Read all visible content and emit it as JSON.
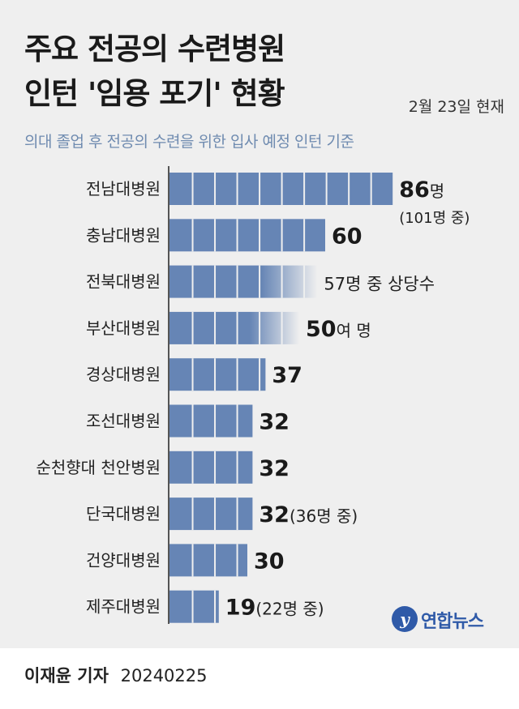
{
  "header": {
    "title_line1": "주요 전공의 수련병원",
    "title_line2": "인턴 '임용 포기' 현황",
    "date": "2월 23일 현재",
    "subtitle": "의대 졸업 후 전공의 수련을 위한 입사 예정 인턴 기준"
  },
  "chart_data": {
    "type": "bar",
    "orientation": "horizontal",
    "categories": [
      "전남대병원",
      "충남대병원",
      "전북대병원",
      "부산대병원",
      "경상대병원",
      "조선대병원",
      "순천향대 천안병원",
      "단국대병원",
      "건양대병원",
      "제주대병원"
    ],
    "values": [
      86,
      60,
      57,
      50,
      37,
      32,
      32,
      32,
      30,
      19
    ],
    "value_labels": [
      {
        "main": "86",
        "suffix": "명",
        "note": "(101명 중)"
      },
      {
        "main": "60",
        "suffix": "",
        "note": ""
      },
      {
        "main": "",
        "suffix": "57명 중 상당수",
        "note": ""
      },
      {
        "main": "50",
        "suffix": "여 명",
        "note": ""
      },
      {
        "main": "37",
        "suffix": "",
        "note": ""
      },
      {
        "main": "32",
        "suffix": "",
        "note": ""
      },
      {
        "main": "32",
        "suffix": "",
        "note": ""
      },
      {
        "main": "32",
        "suffix": "(36명 중)",
        "note": ""
      },
      {
        "main": "30",
        "suffix": "",
        "note": ""
      },
      {
        "main": "19",
        "suffix": "(22명 중)",
        "note": ""
      }
    ],
    "faded": [
      false,
      false,
      true,
      true,
      false,
      false,
      false,
      false,
      false,
      false
    ],
    "bar_color": "#6685b5",
    "axis_color": "#555555"
  },
  "logo": {
    "mark": "y",
    "text": "연합뉴스",
    "color": "#2f5aa8"
  },
  "footer": {
    "author": "이재윤 기자",
    "date": "20240225"
  }
}
